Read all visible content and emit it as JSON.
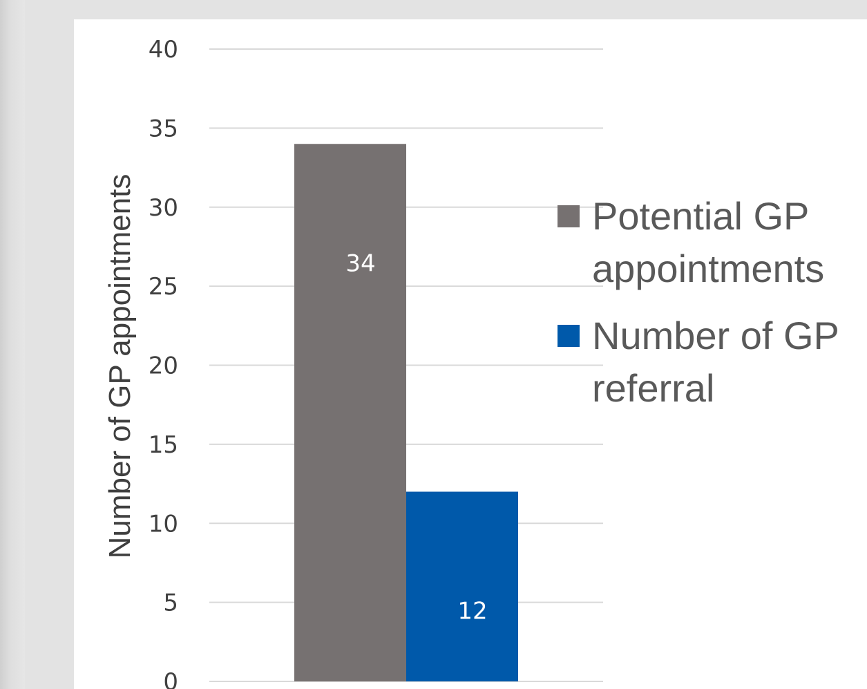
{
  "chart_data": {
    "type": "bar",
    "title": "",
    "xlabel": "",
    "ylabel": "Number of GP appointments",
    "ylim": [
      0,
      40
    ],
    "yticks": [
      0,
      5,
      10,
      15,
      20,
      25,
      30,
      35,
      40
    ],
    "categories": [
      ""
    ],
    "series": [
      {
        "name": "Potential GP appointments",
        "legend_lines": [
          "Potential GP",
          "appointments"
        ],
        "values": [
          34
        ],
        "color": "#767171",
        "label": "34"
      },
      {
        "name": "Number of GP referral",
        "legend_lines": [
          "Number of GP",
          "referral"
        ],
        "values": [
          12
        ],
        "color": "#0059aa",
        "label": "12"
      }
    ],
    "grid": true,
    "legend": "right"
  }
}
